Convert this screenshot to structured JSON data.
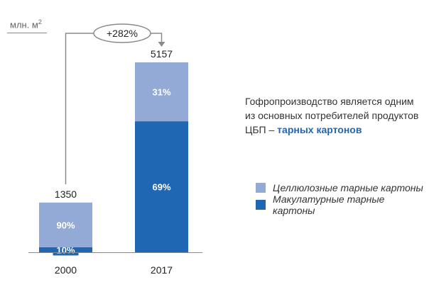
{
  "unit_label": "млн. м",
  "unit_sup": "2",
  "description": {
    "text": "Гофропроизводство является одним из основных потребителей продуктов ЦБП – ",
    "highlight": "тарных картонов"
  },
  "growth_label": "+282%",
  "colors": {
    "light": "#93a9d6",
    "dark": "#1f66b3",
    "axis": "#8a8a8a",
    "highlight": "#1f66b3"
  },
  "chart_data": {
    "type": "bar",
    "stacked": true,
    "categories": [
      "2000",
      "2017"
    ],
    "totals": [
      1350,
      5157
    ],
    "series": [
      {
        "name": "Макулатурные тарные картоны",
        "color": "#1f66b3",
        "share_labels": [
          "10%",
          "69%"
        ],
        "values": [
          135,
          3558
        ]
      },
      {
        "name": "Целлюлозные тарные картоны",
        "color": "#93a9d6",
        "share_labels": [
          "90%",
          "31%"
        ],
        "values": [
          1215,
          1599
        ]
      }
    ],
    "ylim": [
      0,
      5157
    ],
    "legend_placement": "right"
  }
}
